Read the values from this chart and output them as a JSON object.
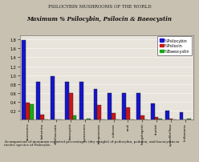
{
  "title": "PSILOCYBIN MUSHROOMS OF THE WORLD",
  "subtitle": "Maximum % Psilocybin, Psilocin & Baeocystin",
  "caption": "A comparison of maximum reported percentages (dry weight) of psilocybin, psilocin, and baeocystin in\ntwelve species of Psilocybe.",
  "categories": [
    "azurescens",
    "bohemica",
    "semilanceata",
    "baeocystis",
    "cyanescens",
    "tampanensis",
    "cubensis",
    "sauli",
    "hoogshagenii",
    "stuntzii",
    "cyanofibrillosa",
    "liniformans"
  ],
  "psilocybin": [
    1.78,
    0.85,
    0.98,
    0.85,
    0.85,
    0.68,
    0.6,
    0.6,
    0.6,
    0.36,
    0.21,
    0.16
  ],
  "psilocin": [
    0.38,
    0.12,
    0.0,
    0.59,
    0.0,
    0.32,
    0.15,
    0.27,
    0.1,
    0.06,
    0.03,
    0.0
  ],
  "baeocystin": [
    0.35,
    0.0,
    0.0,
    0.1,
    0.03,
    0.0,
    0.0,
    0.01,
    0.0,
    0.02,
    0.0,
    0.02
  ],
  "bar_colors": {
    "psilocybin": "#1515cc",
    "psilocin": "#cc1515",
    "baeocystin": "#15aa15"
  },
  "legend_labels": [
    "%Psilocybin",
    "%Psilocin",
    "%Baeocystin"
  ],
  "background_color": "#c8c0b0",
  "plot_bg_color": "#e8e4dc",
  "ylim": [
    0,
    1.9
  ],
  "ytick_values": [
    0.2,
    0.4,
    0.6,
    0.8,
    1.0,
    1.2,
    1.4,
    1.6,
    1.8
  ]
}
